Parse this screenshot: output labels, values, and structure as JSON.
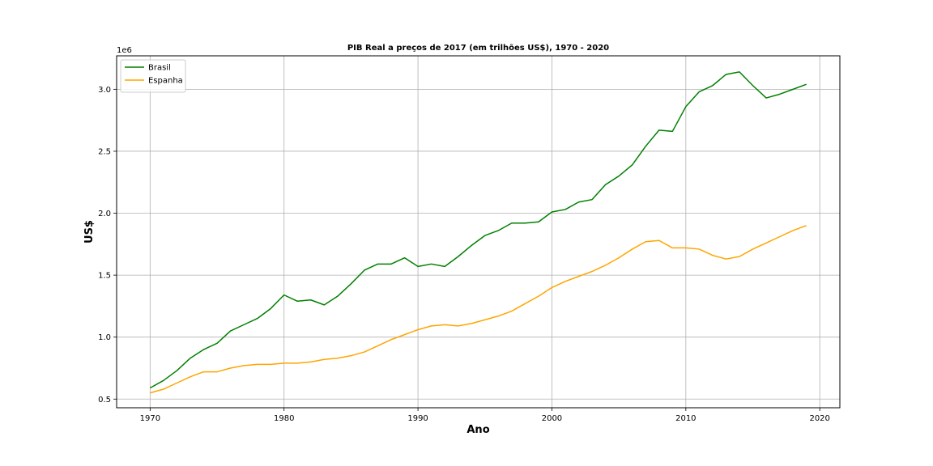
{
  "chart_data": {
    "type": "line",
    "title": "PIB Real a preços de 2017 (em trilhões US$), 1970 - 2020",
    "xlabel": "Ano",
    "ylabel": "US$",
    "y_offset_label": "1e6",
    "xlim": [
      1967.5,
      2021.5
    ],
    "ylim": [
      0.43,
      3.27
    ],
    "x_ticks": [
      1970,
      1980,
      1990,
      2000,
      2010,
      2020
    ],
    "y_ticks": [
      0.5,
      1.0,
      1.5,
      2.0,
      2.5,
      3.0
    ],
    "y_tick_labels": [
      "0.5",
      "1.0",
      "1.5",
      "2.0",
      "2.5",
      "3.0"
    ],
    "grid": true,
    "legend_position": "top-left",
    "x": [
      1970,
      1971,
      1972,
      1973,
      1974,
      1975,
      1976,
      1977,
      1978,
      1979,
      1980,
      1981,
      1982,
      1983,
      1984,
      1985,
      1986,
      1987,
      1988,
      1989,
      1990,
      1991,
      1992,
      1993,
      1994,
      1995,
      1996,
      1997,
      1998,
      1999,
      2000,
      2001,
      2002,
      2003,
      2004,
      2005,
      2006,
      2007,
      2008,
      2009,
      2010,
      2011,
      2012,
      2013,
      2014,
      2015,
      2016,
      2017,
      2018,
      2019
    ],
    "series": [
      {
        "name": "Brasil",
        "color": "#008000",
        "values": [
          0.59,
          0.65,
          0.73,
          0.83,
          0.9,
          0.95,
          1.05,
          1.1,
          1.15,
          1.23,
          1.34,
          1.29,
          1.3,
          1.26,
          1.33,
          1.43,
          1.54,
          1.59,
          1.59,
          1.64,
          1.57,
          1.59,
          1.57,
          1.65,
          1.74,
          1.82,
          1.86,
          1.92,
          1.92,
          1.93,
          2.01,
          2.03,
          2.09,
          2.11,
          2.23,
          2.3,
          2.39,
          2.54,
          2.67,
          2.66,
          2.86,
          2.98,
          3.03,
          3.12,
          3.14,
          3.03,
          2.93,
          2.96,
          3.0,
          3.04
        ]
      },
      {
        "name": "Espanha",
        "color": "#FFA500",
        "values": [
          0.55,
          0.58,
          0.63,
          0.68,
          0.72,
          0.72,
          0.75,
          0.77,
          0.78,
          0.78,
          0.79,
          0.79,
          0.8,
          0.82,
          0.83,
          0.85,
          0.88,
          0.93,
          0.98,
          1.02,
          1.06,
          1.09,
          1.1,
          1.09,
          1.11,
          1.14,
          1.17,
          1.21,
          1.27,
          1.33,
          1.4,
          1.45,
          1.49,
          1.53,
          1.58,
          1.64,
          1.71,
          1.77,
          1.78,
          1.72,
          1.72,
          1.71,
          1.66,
          1.63,
          1.65,
          1.71,
          1.76,
          1.81,
          1.86,
          1.9
        ]
      }
    ]
  }
}
